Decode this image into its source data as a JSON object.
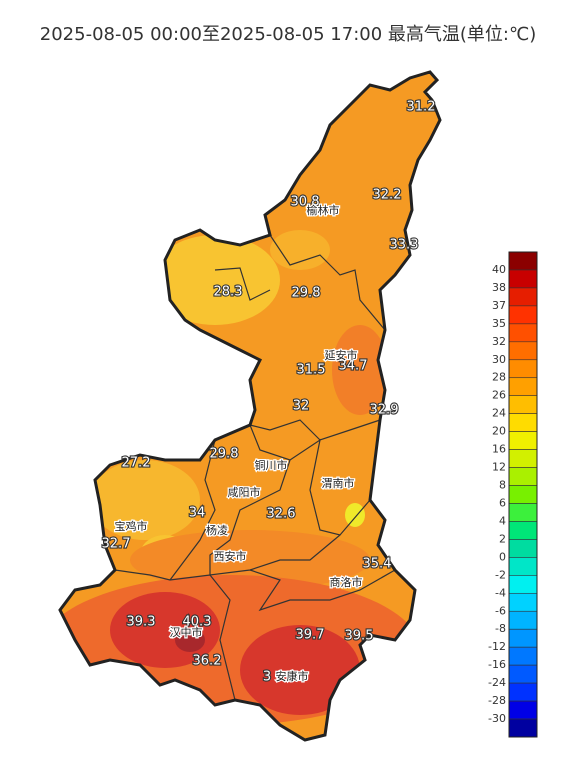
{
  "title": "2025-08-05 00:00至2025-08-05 17:00 最高气温(单位:℃)",
  "stations": [
    31.2,
    30.8,
    32.2,
    33.3,
    28.3,
    29.8,
    31.5,
    34.7,
    32,
    32.9,
    29.8,
    27.2,
    34,
    32.6,
    32.7,
    35.4,
    39.3,
    40.3,
    39.7,
    39.5,
    36.2,
    3
  ],
  "cities": [
    "榆林市",
    "延安市",
    "铜川市",
    "渭南市",
    "咸阳市",
    "宝鸡市",
    "杨凌",
    "西安市",
    "商洛市",
    "汉中市",
    "安康市"
  ],
  "legend": {
    "ticks": [
      40,
      38,
      37,
      35,
      32,
      30,
      28,
      26,
      24,
      20,
      16,
      12,
      8,
      6,
      4,
      2,
      0,
      -2,
      -4,
      -6,
      -8,
      -12,
      -16,
      -24,
      -28,
      -30
    ],
    "colors": [
      "#8b0000",
      "#c80000",
      "#e61e00",
      "#ff3200",
      "#ff5000",
      "#ff6e00",
      "#ff8c00",
      "#ffa000",
      "#ffbe00",
      "#ffdc00",
      "#f0f000",
      "#d2f000",
      "#aaf000",
      "#78f000",
      "#3cf03c",
      "#00e678",
      "#00dca0",
      "#00e6c8",
      "#00f0f0",
      "#00d2ff",
      "#00b4ff",
      "#0096ff",
      "#0078ff",
      "#005aff",
      "#0032ff",
      "#0000e6",
      "#0000a0"
    ]
  }
}
